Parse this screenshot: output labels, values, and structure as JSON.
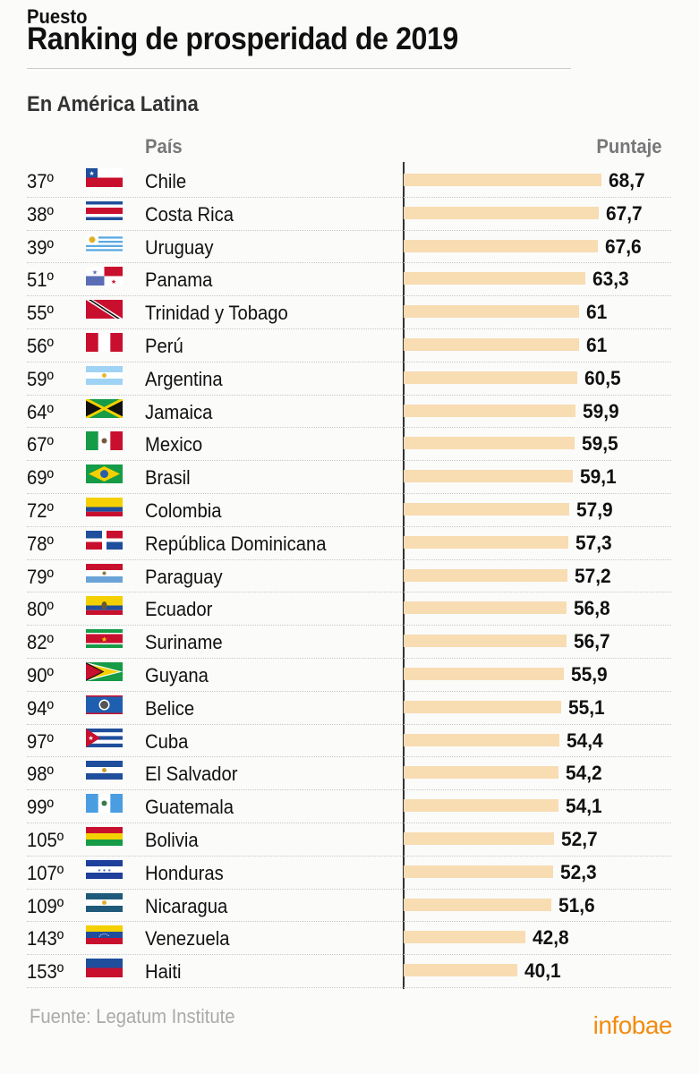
{
  "header": {
    "title": "Ranking de prosperidad de 2019",
    "subtitle": "En América Latina",
    "columns": {
      "rank": "Puesto",
      "country": "País",
      "score": "Puntaje"
    }
  },
  "footer": {
    "source": "Fuente: Legatum Institute",
    "logo": "infobae",
    "logo_color": "#f28c0f"
  },
  "colors": {
    "bar": "#f8dcb2",
    "axis": "#333333",
    "text": "#111111"
  },
  "chart_data": {
    "type": "bar",
    "orientation": "horizontal",
    "title": "Ranking de prosperidad de 2019",
    "subtitle": "En América Latina",
    "xlabel": "Puntaje",
    "ylabel": "País",
    "categories": [
      "Chile",
      "Costa Rica",
      "Uruguay",
      "Panama",
      "Trinidad y Tobago",
      "Perú",
      "Argentina",
      "Jamaica",
      "Mexico",
      "Brasil",
      "Colombia",
      "República Dominicana",
      "Paraguay",
      "Ecuador",
      "Suriname",
      "Guyana",
      "Belice",
      "Cuba",
      "El Salvador",
      "Guatemala",
      "Bolivia",
      "Honduras",
      "Nicaragua",
      "Venezuela",
      "Haiti"
    ],
    "values": [
      68.7,
      67.7,
      67.6,
      63.3,
      61,
      61,
      60.5,
      59.9,
      59.5,
      59.1,
      57.9,
      57.3,
      57.2,
      56.8,
      56.7,
      55.9,
      55.1,
      54.4,
      54.2,
      54.1,
      52.7,
      52.3,
      51.6,
      42.8,
      40.1
    ],
    "ranks": [
      "37º",
      "38º",
      "39º",
      "51º",
      "55º",
      "56º",
      "59º",
      "64º",
      "67º",
      "69º",
      "72º",
      "78º",
      "79º",
      "80º",
      "82º",
      "90º",
      "94º",
      "97º",
      "98º",
      "99º",
      "105º",
      "107º",
      "109º",
      "143º",
      "153º"
    ],
    "source": "Fuente: Legatum Institute",
    "grid": false
  },
  "rows": [
    {
      "rank": "37º",
      "country": "Chile",
      "score": "68,7",
      "value": 68.7,
      "flag": "chile-flag-icon"
    },
    {
      "rank": "38º",
      "country": "Costa Rica",
      "score": "67,7",
      "value": 67.7,
      "flag": "costa-rica-flag-icon"
    },
    {
      "rank": "39º",
      "country": "Uruguay",
      "score": "67,6",
      "value": 67.6,
      "flag": "uruguay-flag-icon"
    },
    {
      "rank": "51º",
      "country": "Panama",
      "score": "63,3",
      "value": 63.3,
      "flag": "panama-flag-icon"
    },
    {
      "rank": "55º",
      "country": "Trinidad y Tobago",
      "score": "61",
      "value": 61,
      "flag": "trinidad-flag-icon"
    },
    {
      "rank": "56º",
      "country": "Perú",
      "score": "61",
      "value": 61,
      "flag": "peru-flag-icon"
    },
    {
      "rank": "59º",
      "country": "Argentina",
      "score": "60,5",
      "value": 60.5,
      "flag": "argentina-flag-icon"
    },
    {
      "rank": "64º",
      "country": "Jamaica",
      "score": "59,9",
      "value": 59.9,
      "flag": "jamaica-flag-icon"
    },
    {
      "rank": "67º",
      "country": "Mexico",
      "score": "59,5",
      "value": 59.5,
      "flag": "mexico-flag-icon"
    },
    {
      "rank": "69º",
      "country": "Brasil",
      "score": "59,1",
      "value": 59.1,
      "flag": "brazil-flag-icon"
    },
    {
      "rank": "72º",
      "country": "Colombia",
      "score": "57,9",
      "value": 57.9,
      "flag": "colombia-flag-icon"
    },
    {
      "rank": "78º",
      "country": "República Dominicana",
      "score": "57,3",
      "value": 57.3,
      "flag": "dominican-flag-icon"
    },
    {
      "rank": "79º",
      "country": "Paraguay",
      "score": "57,2",
      "value": 57.2,
      "flag": "paraguay-flag-icon"
    },
    {
      "rank": "80º",
      "country": "Ecuador",
      "score": "56,8",
      "value": 56.8,
      "flag": "ecuador-flag-icon"
    },
    {
      "rank": "82º",
      "country": "Suriname",
      "score": "56,7",
      "value": 56.7,
      "flag": "suriname-flag-icon"
    },
    {
      "rank": "90º",
      "country": "Guyana",
      "score": "55,9",
      "value": 55.9,
      "flag": "guyana-flag-icon"
    },
    {
      "rank": "94º",
      "country": "Belice",
      "score": "55,1",
      "value": 55.1,
      "flag": "belize-flag-icon"
    },
    {
      "rank": "97º",
      "country": "Cuba",
      "score": "54,4",
      "value": 54.4,
      "flag": "cuba-flag-icon"
    },
    {
      "rank": "98º",
      "country": "El Salvador",
      "score": "54,2",
      "value": 54.2,
      "flag": "el-salvador-flag-icon"
    },
    {
      "rank": "99º",
      "country": "Guatemala",
      "score": "54,1",
      "value": 54.1,
      "flag": "guatemala-flag-icon"
    },
    {
      "rank": "105º",
      "country": "Bolivia",
      "score": "52,7",
      "value": 52.7,
      "flag": "bolivia-flag-icon"
    },
    {
      "rank": "107º",
      "country": "Honduras",
      "score": "52,3",
      "value": 52.3,
      "flag": "honduras-flag-icon"
    },
    {
      "rank": "109º",
      "country": "Nicaragua",
      "score": "51,6",
      "value": 51.6,
      "flag": "nicaragua-flag-icon"
    },
    {
      "rank": "143º",
      "country": "Venezuela",
      "score": "42,8",
      "value": 42.8,
      "flag": "venezuela-flag-icon"
    },
    {
      "rank": "153º",
      "country": "Haiti",
      "score": "40,1",
      "value": 40.1,
      "flag": "haiti-flag-icon"
    }
  ]
}
